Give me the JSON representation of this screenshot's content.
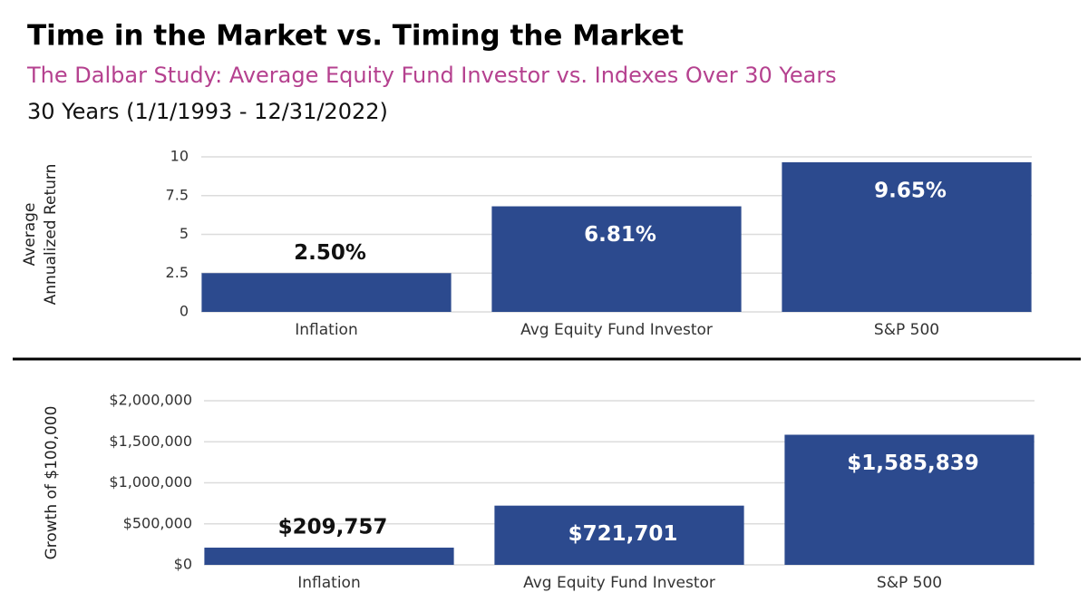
{
  "header": {
    "title": "Time in the Market vs. Timing the Market",
    "subtitle": "The Dalbar Study: Average Equity Fund Investor vs. Indexes Over 30 Years",
    "period": "30 Years (1/1/1993 - 12/31/2022)"
  },
  "chart_data": [
    {
      "type": "bar",
      "ylabel": [
        "Average",
        "Annualized Return"
      ],
      "categories": [
        "Inflation",
        "Avg Equity Fund Investor",
        "S&P 500"
      ],
      "values": [
        2.5,
        6.81,
        9.65
      ],
      "value_labels": [
        "2.50%",
        "6.81%",
        "9.65%"
      ],
      "color": "#2c4a8e",
      "ylim": [
        0,
        10
      ],
      "yticks": [
        0,
        2.5,
        5,
        7.5,
        10
      ],
      "grid": true
    },
    {
      "type": "bar",
      "ylabel": "Growth of $100,000",
      "categories": [
        "Inflation",
        "Avg Equity Fund Investor",
        "S&P 500"
      ],
      "values": [
        209757,
        721701,
        1585839
      ],
      "value_labels": [
        "$209,757",
        "$721,701",
        "$1,585,839"
      ],
      "color": "#2c4a8e",
      "ylim": [
        0,
        2000000
      ],
      "yticks": [
        {
          "value": 0,
          "label": "$0"
        },
        {
          "value": 500000,
          "label": "$500,000"
        },
        {
          "value": 1000000,
          "label": "$1,000,000"
        },
        {
          "value": 1500000,
          "label": "$1,500,000"
        },
        {
          "value": 2000000,
          "label": "$2,000,000"
        }
      ],
      "grid": true
    }
  ]
}
